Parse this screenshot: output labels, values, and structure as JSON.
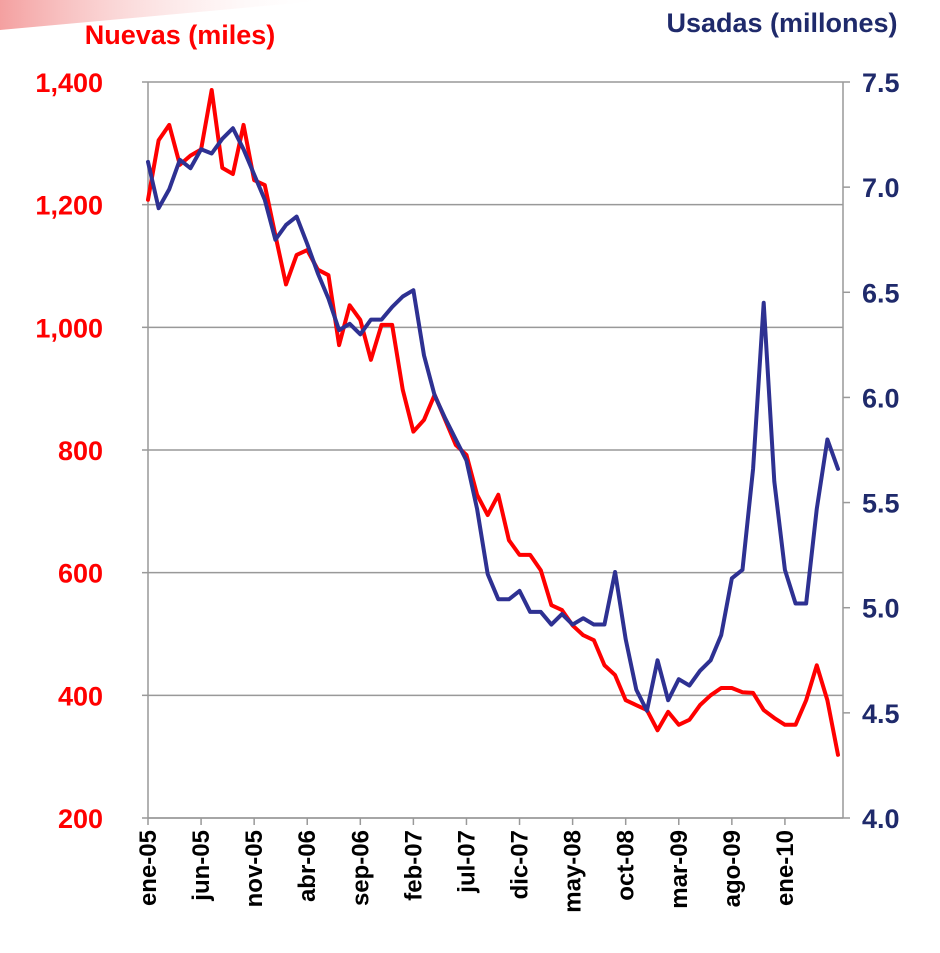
{
  "chart_data": {
    "type": "line",
    "y_label": "Nuevas (miles)",
    "y2_label": "Usadas (millones)",
    "categories": [
      "ene-05",
      null,
      null,
      null,
      null,
      "jun-05",
      null,
      null,
      null,
      null,
      "nov-05",
      null,
      null,
      null,
      null,
      "abr-06",
      null,
      null,
      null,
      null,
      "sep-06",
      null,
      null,
      null,
      null,
      "feb-07",
      null,
      null,
      null,
      null,
      "jul-07",
      null,
      null,
      null,
      null,
      "dic-07",
      null,
      null,
      null,
      null,
      "may-08",
      null,
      null,
      null,
      null,
      "oct-08",
      null,
      null,
      null,
      null,
      "mar-09",
      null,
      null,
      null,
      null,
      "ago-09",
      null,
      null,
      null,
      null,
      "ene-10",
      null,
      null,
      null,
      null,
      null
    ],
    "series": [
      {
        "name": "Nuevas (miles)",
        "color": "#ff0000",
        "axis": "y",
        "values": [
          1208,
          1305,
          1330,
          1265,
          1280,
          1290,
          1387,
          1260,
          1250,
          1330,
          1240,
          1232,
          1150,
          1070,
          1118,
          1126,
          1094,
          1085,
          971,
          1036,
          1012,
          947,
          1004,
          1004,
          898,
          830,
          849,
          890,
          849,
          808,
          792,
          727,
          694,
          727,
          653,
          629,
          629,
          604,
          547,
          539,
          514,
          498,
          490,
          449,
          433,
          392,
          384,
          376,
          343,
          373,
          352,
          360,
          384,
          400,
          412,
          412,
          405,
          404,
          376,
          363,
          352,
          352,
          392,
          449,
          392,
          303
        ]
      },
      {
        "name": "Usadas (millones)",
        "color": "#2e3192",
        "axis": "y2",
        "values": [
          7.12,
          6.9,
          6.99,
          7.13,
          7.09,
          7.18,
          7.16,
          7.23,
          7.28,
          7.18,
          7.06,
          6.94,
          6.75,
          6.82,
          6.86,
          6.73,
          6.59,
          6.47,
          6.32,
          6.35,
          6.3,
          6.37,
          6.37,
          6.43,
          6.48,
          6.51,
          6.2,
          6.01,
          5.9,
          5.8,
          5.7,
          5.47,
          5.16,
          5.04,
          5.04,
          5.08,
          4.98,
          4.98,
          4.92,
          4.97,
          4.92,
          4.95,
          4.92,
          4.92,
          5.17,
          4.85,
          4.61,
          4.51,
          4.75,
          4.56,
          4.66,
          4.63,
          4.7,
          4.75,
          4.87,
          5.14,
          5.18,
          5.66,
          6.45,
          5.6,
          5.18,
          5.02,
          5.02,
          5.47,
          5.8,
          5.66
        ]
      }
    ],
    "ylim": [
      200,
      1400
    ],
    "yticks": [
      200,
      400,
      600,
      800,
      {
        "value": 1000,
        "label": "1,000"
      },
      {
        "value": 1200,
        "label": "1,200"
      },
      {
        "value": 1400,
        "label": "1,400"
      }
    ],
    "y2lim": [
      4,
      7.5
    ],
    "y2ticks": [
      {
        "value": 4,
        "label": "4.0"
      },
      4.5,
      {
        "value": 5,
        "label": "5.0"
      },
      5.5,
      {
        "value": 6,
        "label": "6.0"
      },
      6.5,
      {
        "value": 7,
        "label": "7.0"
      },
      7.5
    ],
    "grid": true
  }
}
